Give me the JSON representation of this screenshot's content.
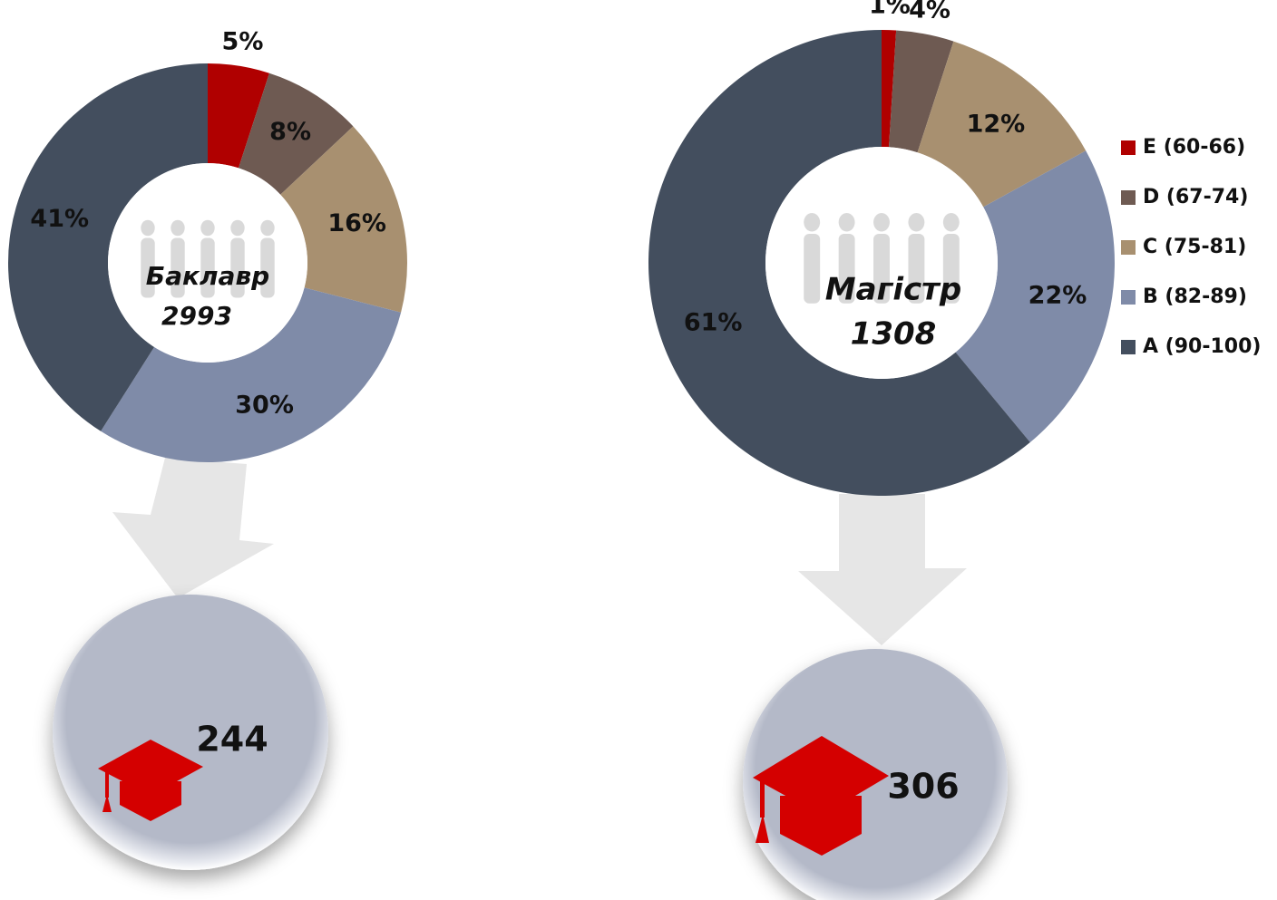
{
  "chart_data": [
    {
      "type": "donut",
      "values": [
        5,
        8,
        16,
        30,
        41
      ],
      "value_labels": [
        "5%",
        "8%",
        "16%",
        "30%",
        "41%"
      ],
      "center_label": "Баклавр",
      "center_value": 2993,
      "graduates": 244
    },
    {
      "type": "donut",
      "values": [
        1,
        4,
        12,
        22,
        61
      ],
      "value_labels": [
        "1%",
        "4%",
        "12%",
        "22%",
        "61%"
      ],
      "center_label": "Магістр",
      "center_value": 1308,
      "graduates": 306
    }
  ],
  "legend": {
    "categories": [
      "E (60-66)",
      "D (67-74)",
      "C (75-81)",
      "B (82-89)",
      "A (90-100)"
    ],
    "colors": [
      "#b00000",
      "#6e5a52",
      "#a89070",
      "#7f8ba8",
      "#434e5e"
    ]
  }
}
